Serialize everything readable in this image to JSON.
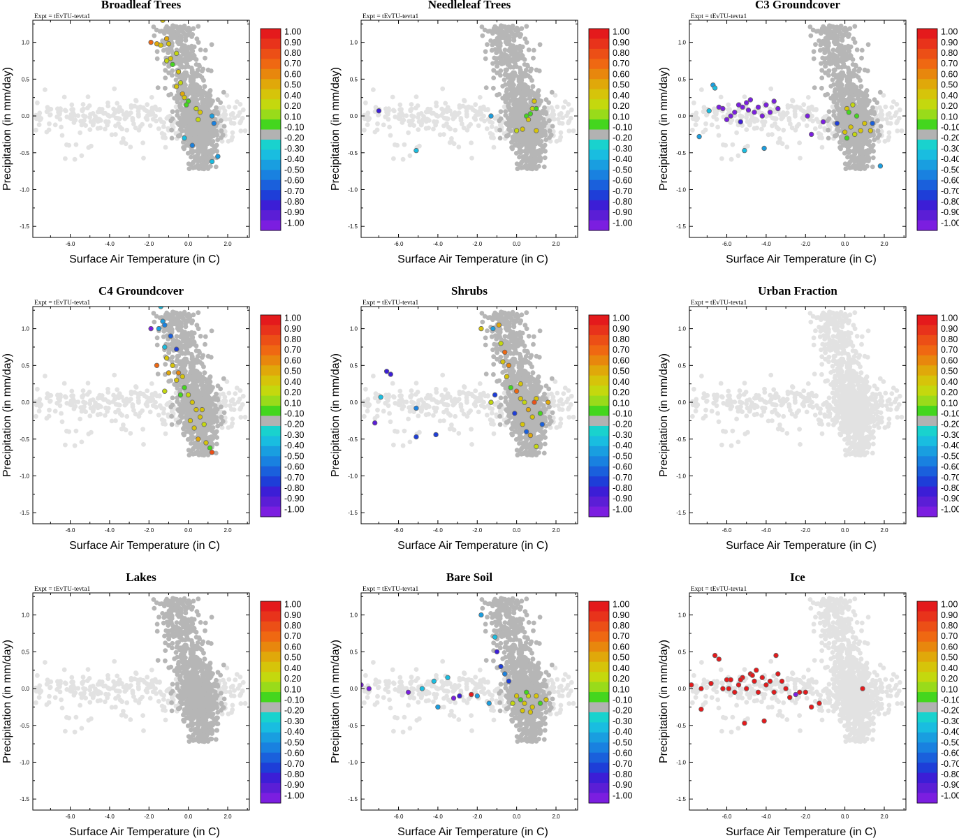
{
  "chart_data": {
    "type": "scatter",
    "figure_layout": "3x3 grid of panels",
    "expt_label": "Expt = tEvTU-tevta1",
    "xlabel": "Surface Air Temperature (in C)",
    "ylabel": "Precipitation (in mm/day)",
    "xlim": [
      -7.9,
      3.1
    ],
    "ylim": [
      -1.65,
      1.3
    ],
    "xticks": [
      -6.0,
      -4.0,
      -2.0,
      0.0,
      2.0
    ],
    "xtick_labels": [
      "-6.0",
      "-4.0",
      "-2.0",
      "0.0",
      "2.0"
    ],
    "yticks": [
      1.0,
      0.5,
      0.0,
      -0.5,
      -1.0,
      -1.5
    ],
    "ytick_labels": [
      "1.0",
      "0.5",
      "0.0",
      "-0.5",
      "-1.0",
      "-1.5"
    ],
    "colorbar": {
      "labels": [
        "1.00",
        "0.90",
        "0.80",
        "0.70",
        "0.60",
        "0.50",
        "0.40",
        "0.20",
        "0.10",
        "-0.10",
        "-0.20",
        "-0.30",
        "-0.40",
        "-0.50",
        "-0.60",
        "-0.70",
        "-0.80",
        "-0.90",
        "-1.00"
      ],
      "colors": [
        "#e41a1c",
        "#e8331b",
        "#ec4f16",
        "#ef6812",
        "#e8870d",
        "#e0a80a",
        "#d6c40a",
        "#c4d80e",
        "#99db1a",
        "#44d61e",
        "#b2b2b2",
        "#19d2ce",
        "#19bde0",
        "#199ee0",
        "#1981e0",
        "#1a60dc",
        "#1e3ed8",
        "#3c1ed6",
        "#5b1ed6",
        "#7b1ee0"
      ]
    },
    "base_colors": {
      "cold_cloud": "#e2e2e2",
      "land_cluster": "#b6b6b6"
    },
    "panels": [
      {
        "title": "Broadleaf Trees",
        "points": [
          [
            -1.9,
            1.0,
            0.62
          ],
          [
            -1.6,
            0.98,
            0.45
          ],
          [
            -1.4,
            0.96,
            0.3
          ],
          [
            -1.0,
            0.98,
            0.35
          ],
          [
            -1.1,
            1.05,
            0.4
          ],
          [
            -1.3,
            1.3,
            0.3
          ],
          [
            -0.9,
            0.78,
            0.2
          ],
          [
            -0.8,
            0.7,
            0.1
          ],
          [
            -0.6,
            0.85,
            0.15
          ],
          [
            -1.1,
            0.75,
            0.15
          ],
          [
            -0.5,
            0.6,
            0.3
          ],
          [
            -0.4,
            0.45,
            0.15
          ],
          [
            -0.3,
            0.3,
            0.45
          ],
          [
            -0.6,
            0.4,
            0.2
          ],
          [
            -0.2,
            0.25,
            0.3
          ],
          [
            0.0,
            0.2,
            0.1
          ],
          [
            -0.1,
            0.15,
            0.1
          ],
          [
            0.4,
            0.1,
            0.15
          ],
          [
            0.6,
            0.05,
            0.2
          ],
          [
            0.5,
            -0.05,
            0.15
          ],
          [
            1.2,
            0.0,
            -0.3
          ],
          [
            1.3,
            -0.1,
            -0.4
          ],
          [
            -0.2,
            -0.3,
            -0.25
          ],
          [
            1.5,
            -0.55,
            -0.3
          ],
          [
            1.2,
            -0.62,
            -0.2
          ],
          [
            0.2,
            -0.4,
            -0.4
          ]
        ]
      },
      {
        "title": "Needleleaf Trees",
        "points": [
          [
            -7.0,
            0.07,
            -0.7
          ],
          [
            -5.1,
            -0.47,
            -0.2
          ],
          [
            -1.3,
            0.0,
            -0.3
          ],
          [
            0.5,
            0.0,
            0.1
          ],
          [
            0.8,
            0.1,
            0.15
          ],
          [
            0.9,
            0.2,
            0.2
          ],
          [
            1.0,
            0.1,
            0.1
          ],
          [
            0.6,
            -0.05,
            0.2
          ],
          [
            1.0,
            -0.2,
            0.3
          ],
          [
            0.0,
            -0.2,
            0.15
          ],
          [
            0.3,
            -0.18,
            0.2
          ],
          [
            0.7,
            0.03,
            0.1
          ]
        ]
      },
      {
        "title": "C3 Groundcover",
        "points": [
          [
            -6.9,
            0.07,
            -0.2
          ],
          [
            -6.7,
            0.42,
            -0.3
          ],
          [
            -6.6,
            0.38,
            -0.2
          ],
          [
            -7.4,
            -0.28,
            -0.3
          ],
          [
            -5.1,
            -0.47,
            -0.2
          ],
          [
            -4.1,
            -0.44,
            -0.3
          ],
          [
            -6.4,
            0.12,
            -0.9
          ],
          [
            -6.2,
            0.1,
            -0.95
          ],
          [
            -6.0,
            -0.05,
            -0.95
          ],
          [
            -5.8,
            0.0,
            -0.9
          ],
          [
            -5.6,
            0.05,
            -0.95
          ],
          [
            -5.4,
            0.15,
            -0.95
          ],
          [
            -5.2,
            0.12,
            -0.9
          ],
          [
            -5.0,
            0.18,
            -0.95
          ],
          [
            -4.8,
            0.22,
            -0.95
          ],
          [
            -4.6,
            0.05,
            -0.9
          ],
          [
            -4.4,
            0.12,
            -0.95
          ],
          [
            -4.2,
            0.0,
            -0.95
          ],
          [
            -4.0,
            0.15,
            -0.9
          ],
          [
            -3.8,
            0.05,
            -0.95
          ],
          [
            -3.6,
            0.2,
            -0.95
          ],
          [
            -3.4,
            0.1,
            -0.9
          ],
          [
            -5.3,
            -0.08,
            -0.7
          ],
          [
            -4.9,
            0.08,
            -0.95
          ],
          [
            -1.9,
            0.0,
            -0.95
          ],
          [
            -1.7,
            -0.25,
            -0.95
          ],
          [
            -1.1,
            -0.08,
            -0.9
          ],
          [
            -0.4,
            -0.1,
            -0.6
          ],
          [
            0.1,
            0.1,
            0.2
          ],
          [
            0.2,
            0.05,
            0.1
          ],
          [
            0.3,
            -0.15,
            0.2
          ],
          [
            0.5,
            -0.25,
            0.15
          ],
          [
            0.8,
            -0.2,
            0.3
          ],
          [
            1.0,
            -0.1,
            0.2
          ],
          [
            0.1,
            -0.3,
            0.1
          ],
          [
            0.6,
            0.0,
            0.1
          ],
          [
            1.3,
            -0.2,
            0.2
          ],
          [
            1.4,
            -0.1,
            -0.5
          ],
          [
            0.0,
            -0.22,
            0.3
          ],
          [
            1.8,
            -0.68,
            -0.3
          ],
          [
            0.4,
            0.15,
            0.15
          ]
        ]
      },
      {
        "title": "C4 Groundcover",
        "points": [
          [
            -1.9,
            1.0,
            -0.9
          ],
          [
            -1.5,
            1.0,
            -0.3
          ],
          [
            -1.3,
            1.1,
            -0.3
          ],
          [
            -1.2,
            1.05,
            -0.4
          ],
          [
            -1.4,
            1.3,
            -0.2
          ],
          [
            -0.9,
            0.9,
            -0.5
          ],
          [
            -0.6,
            0.72,
            -0.6
          ],
          [
            -1.2,
            0.75,
            -0.2
          ],
          [
            -1.6,
            0.5,
            0.6
          ],
          [
            -1.1,
            0.6,
            0.3
          ],
          [
            -0.8,
            0.5,
            0.3
          ],
          [
            -0.5,
            0.4,
            0.5
          ],
          [
            -0.3,
            0.35,
            0.3
          ],
          [
            -0.6,
            0.3,
            0.2
          ],
          [
            -1.0,
            0.4,
            0.4
          ],
          [
            -0.2,
            0.2,
            0.1
          ],
          [
            0.0,
            0.1,
            0.15
          ],
          [
            0.2,
            0.0,
            0.2
          ],
          [
            0.4,
            -0.1,
            0.3
          ],
          [
            0.6,
            -0.2,
            0.2
          ],
          [
            0.8,
            -0.3,
            0.15
          ],
          [
            0.3,
            -0.35,
            0.2
          ],
          [
            0.9,
            -0.55,
            0.3
          ],
          [
            1.1,
            -0.62,
            0.1
          ],
          [
            1.2,
            -0.68,
            0.7
          ],
          [
            -1.2,
            0.15,
            0.15
          ],
          [
            0.5,
            -0.5,
            0.45
          ],
          [
            0.1,
            -0.25,
            0.2
          ],
          [
            -0.4,
            0.1,
            0.1
          ],
          [
            0.7,
            -0.1,
            0.25
          ]
        ]
      },
      {
        "title": "Shrubs",
        "points": [
          [
            -6.6,
            0.42,
            -0.75
          ],
          [
            -6.4,
            0.38,
            -0.7
          ],
          [
            -7.2,
            -0.28,
            -0.8
          ],
          [
            -6.9,
            0.07,
            -0.2
          ],
          [
            -5.1,
            -0.47,
            -0.6
          ],
          [
            -4.1,
            -0.44,
            -0.6
          ],
          [
            -5.1,
            -0.08,
            -0.45
          ],
          [
            -1.8,
            1.0,
            0.2
          ],
          [
            -1.2,
            1.0,
            -0.3
          ],
          [
            -0.9,
            1.05,
            0.4
          ],
          [
            -0.6,
            0.68,
            0.65
          ],
          [
            -0.7,
            0.55,
            0.3
          ],
          [
            -0.4,
            0.5,
            0.55
          ],
          [
            -0.5,
            0.35,
            0.2
          ],
          [
            -1.1,
            0.1,
            -0.6
          ],
          [
            -1.3,
            0.0,
            0.15
          ],
          [
            -0.3,
            0.2,
            0.1
          ],
          [
            0.0,
            0.15,
            0.6
          ],
          [
            0.2,
            0.05,
            0.3
          ],
          [
            0.4,
            0.0,
            0.15
          ],
          [
            0.6,
            -0.1,
            0.4
          ],
          [
            0.8,
            -0.2,
            0.2
          ],
          [
            1.0,
            0.05,
            0.3
          ],
          [
            1.2,
            -0.15,
            0.1
          ],
          [
            0.3,
            -0.3,
            0.2
          ],
          [
            0.5,
            -0.4,
            -0.5
          ],
          [
            0.7,
            -0.45,
            0.45
          ],
          [
            1.0,
            -0.6,
            0.15
          ],
          [
            1.3,
            -0.3,
            -0.5
          ],
          [
            -0.1,
            -0.15,
            -0.6
          ],
          [
            0.9,
            0.0,
            0.7
          ],
          [
            1.6,
            0.0,
            0.4
          ],
          [
            0.2,
            0.25,
            0.2
          ],
          [
            -0.8,
            0.8,
            0.15
          ]
        ]
      },
      {
        "title": "Urban Fraction",
        "points": []
      },
      {
        "title": "Lakes",
        "points": []
      },
      {
        "title": "Bare Soil",
        "points": [
          [
            -7.9,
            0.05,
            -0.95
          ],
          [
            -7.5,
            0.0,
            -0.9
          ],
          [
            -5.5,
            -0.05,
            -0.95
          ],
          [
            -3.2,
            -0.13,
            -0.95
          ],
          [
            -2.9,
            -0.1,
            -0.75
          ],
          [
            -2.3,
            -0.08,
            0.95
          ],
          [
            -1.4,
            -0.2,
            -0.3
          ],
          [
            -4.8,
            0.0,
            -0.2
          ],
          [
            -4.2,
            0.1,
            -0.25
          ],
          [
            -3.5,
            0.15,
            -0.2
          ],
          [
            -4.0,
            -0.25,
            -0.3
          ],
          [
            -2.0,
            -0.1,
            -0.3
          ],
          [
            -1.8,
            1.0,
            -0.3
          ],
          [
            -1.1,
            0.7,
            -0.2
          ],
          [
            -1.0,
            0.5,
            -0.7
          ],
          [
            -0.8,
            0.3,
            -0.6
          ],
          [
            -0.6,
            0.2,
            -0.4
          ],
          [
            -0.4,
            0.1,
            -0.6
          ],
          [
            0.0,
            -0.1,
            0.2
          ],
          [
            0.2,
            -0.15,
            0.1
          ],
          [
            0.4,
            -0.2,
            0.3
          ],
          [
            0.6,
            -0.1,
            0.15
          ],
          [
            0.8,
            -0.25,
            0.2
          ],
          [
            1.0,
            -0.1,
            0.25
          ],
          [
            1.2,
            -0.2,
            0.1
          ],
          [
            0.3,
            -0.3,
            0.2
          ],
          [
            0.5,
            -0.05,
            0.1
          ],
          [
            1.5,
            -0.15,
            0.3
          ],
          [
            -0.2,
            -0.2,
            0.15
          ],
          [
            0.7,
            -0.32,
            0.2
          ]
        ]
      },
      {
        "title": "Ice",
        "points": [
          [
            -7.8,
            0.05,
            0.95
          ],
          [
            -7.3,
            0.0,
            0.95
          ],
          [
            -7.3,
            -0.28,
            0.95
          ],
          [
            -6.8,
            0.07,
            0.95
          ],
          [
            -6.6,
            0.45,
            0.95
          ],
          [
            -6.4,
            0.4,
            0.95
          ],
          [
            -6.2,
            0.0,
            0.95
          ],
          [
            -6.0,
            0.12,
            0.95
          ],
          [
            -5.8,
            0.12,
            0.95
          ],
          [
            -5.6,
            -0.05,
            0.95
          ],
          [
            -5.4,
            0.05,
            0.95
          ],
          [
            -5.2,
            0.15,
            0.95
          ],
          [
            -5.0,
            0.0,
            0.95
          ],
          [
            -4.8,
            0.2,
            0.95
          ],
          [
            -4.6,
            0.1,
            0.95
          ],
          [
            -4.4,
            -0.05,
            0.95
          ],
          [
            -4.2,
            0.15,
            0.95
          ],
          [
            -4.0,
            0.05,
            0.95
          ],
          [
            -3.8,
            0.1,
            0.95
          ],
          [
            -3.6,
            -0.05,
            0.95
          ],
          [
            -3.4,
            0.2,
            0.95
          ],
          [
            -3.2,
            0.1,
            0.95
          ],
          [
            -3.0,
            0.0,
            0.95
          ],
          [
            -2.8,
            -0.12,
            0.95
          ],
          [
            -3.5,
            0.45,
            0.95
          ],
          [
            -5.1,
            -0.47,
            0.95
          ],
          [
            -4.1,
            -0.44,
            0.95
          ],
          [
            -2.3,
            -0.05,
            0.95
          ],
          [
            -2.0,
            -0.05,
            0.95
          ],
          [
            -1.7,
            -0.25,
            0.95
          ],
          [
            -1.3,
            -0.2,
            0.95
          ],
          [
            -5.9,
            0.0,
            0.95
          ],
          [
            -4.7,
            0.18,
            0.95
          ],
          [
            -4.5,
            0.25,
            0.95
          ],
          [
            -5.3,
            0.12,
            0.95
          ],
          [
            -2.5,
            -0.08,
            -0.95
          ],
          [
            0.9,
            0.0,
            0.95
          ]
        ]
      }
    ]
  }
}
